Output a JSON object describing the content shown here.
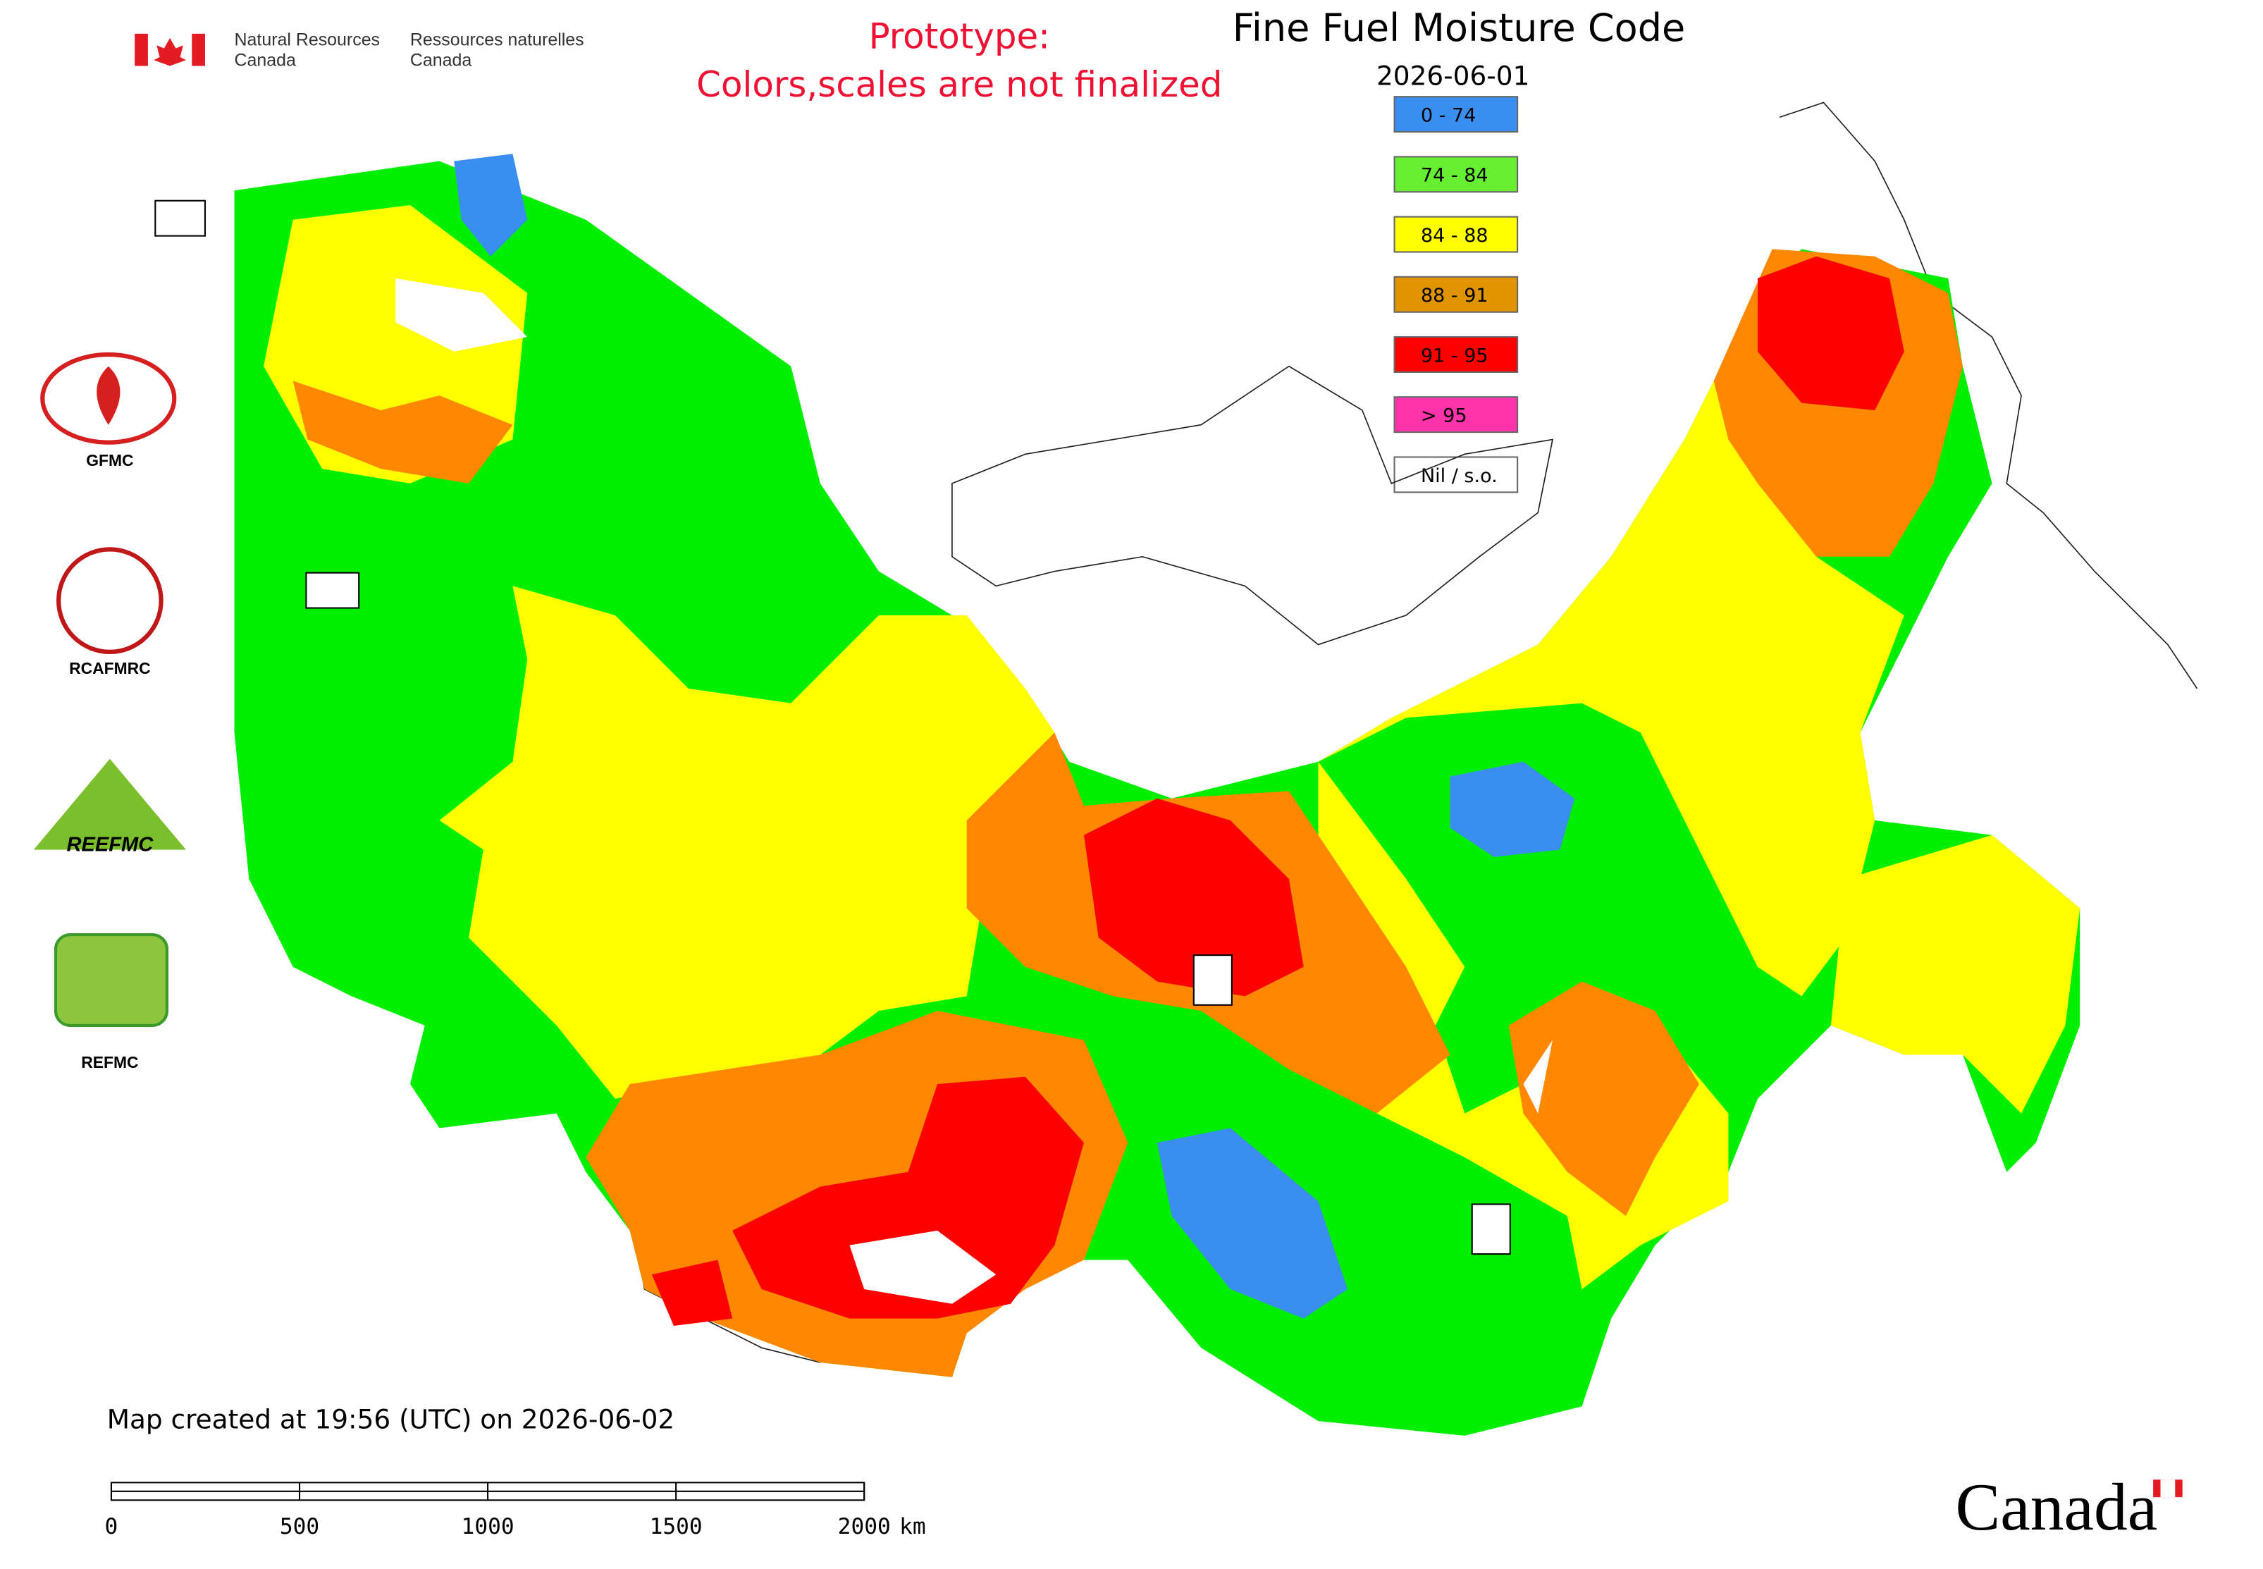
{
  "header": {
    "agency_en": [
      "Natural Resources",
      "Canada"
    ],
    "agency_fr": [
      "Ressources naturelles",
      "Canada"
    ]
  },
  "notice": [
    "Prototype:",
    "Colors,scales are not finalized"
  ],
  "title": "Fine Fuel Moisture Code",
  "date": "2026-06-01",
  "legend": [
    {
      "label": "0 - 74",
      "color": "#3a8ef0"
    },
    {
      "label": "74 - 84",
      "color": "#66ee33"
    },
    {
      "label": "84 - 88",
      "color": "#ffff00"
    },
    {
      "label": "88 - 91",
      "color": "#e09400"
    },
    {
      "label": "91 - 95",
      "color": "#ff0000"
    },
    {
      "label": "> 95",
      "color": "#ff33aa"
    },
    {
      "label": "Nil / s.o.",
      "color": "#ffffff"
    }
  ],
  "logos": [
    "GFMC",
    "RCAFMRC",
    "REEFMC",
    "REFMC"
  ],
  "footer": "Map created at 19:56 (UTC) on 2026-06-02",
  "scale_bar": {
    "ticks": [
      0,
      500,
      1000,
      1500,
      2000
    ],
    "unit": "km"
  },
  "wordmark": "Canada"
}
